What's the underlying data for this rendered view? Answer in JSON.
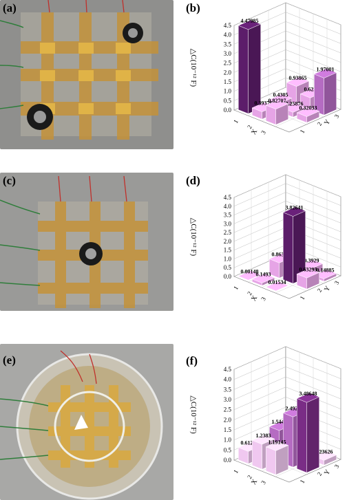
{
  "panels": [
    {
      "label": "(a)",
      "kind": "photo"
    },
    {
      "label": "(b)",
      "kind": "chart"
    },
    {
      "label": "(c)",
      "kind": "photo"
    },
    {
      "label": "(d)",
      "kind": "chart"
    },
    {
      "label": "(e)",
      "kind": "photo"
    },
    {
      "label": "(f)",
      "kind": "chart"
    }
  ],
  "colors": {
    "tall": "#5c1d6a",
    "light": "#e6a4e6",
    "mid": "#b56cc2",
    "dark_f": "#7a2d86",
    "lightest": "#f0c8f0"
  },
  "chart_data": [
    {
      "type": "bar3d",
      "ylabel": "△C(10⁻¹² F)",
      "xlabel": "X",
      "zlabel": "Y",
      "zticks": [
        "0.0",
        "0.5",
        "1.0",
        "1.5",
        "2.0",
        "2.5",
        "3.0",
        "3.5",
        "4.0",
        "4.5"
      ],
      "xticks": [
        "1",
        "2",
        "3"
      ],
      "yticks": [
        "1",
        "2",
        "3"
      ],
      "ylim": [
        0,
        4.5
      ],
      "bars": [
        {
          "x": 1,
          "y": 1,
          "value": 4.47985,
          "label": "4.47985",
          "color": "tall"
        },
        {
          "x": 2,
          "y": 1,
          "value": 0.39376,
          "label": "0.39376",
          "color": "light"
        },
        {
          "x": 2,
          "y": 2,
          "value": 0.4305,
          "label": "0.4305",
          "color": "light"
        },
        {
          "x": 2,
          "y": 3,
          "value": 0.93865,
          "label": "0.93865",
          "color": "light"
        },
        {
          "x": 3,
          "y": 1,
          "value": 0.82707,
          "label": "0.82707",
          "color": "light"
        },
        {
          "x": 3,
          "y": 2,
          "value": 0.25876,
          "label": "0.25876",
          "color": "light"
        },
        {
          "x": 3,
          "y": 3,
          "value": 0.6239,
          "label": "0.6239",
          "color": "light"
        },
        {
          "x": 4,
          "y": 2,
          "value": 0.32033,
          "label": "0.32033",
          "color": "light"
        },
        {
          "x": 4,
          "y": 3,
          "value": 1.97001,
          "label": "1.97001",
          "color": "mid"
        }
      ]
    },
    {
      "type": "bar3d",
      "ylabel": "△C(10⁻¹² F)",
      "xlabel": "X",
      "zlabel": "Y",
      "zticks": [
        "0.0",
        "0.5",
        "1.0",
        "1.5",
        "2.0",
        "2.5",
        "3.0",
        "3.5",
        "4.0",
        "4.5"
      ],
      "xticks": [
        "1",
        "2",
        "3"
      ],
      "yticks": [
        "1",
        "2",
        "3"
      ],
      "ylim": [
        0,
        4.5
      ],
      "bars": [
        {
          "x": 1,
          "y": 1,
          "value": 0.00148,
          "label": "0.00148",
          "color": "light"
        },
        {
          "x": 2,
          "y": 1,
          "value": 0.1493,
          "label": "0.1493",
          "color": "light"
        },
        {
          "x": 2,
          "y": 2,
          "value": 0.86373,
          "label": "0.86373",
          "color": "light"
        },
        {
          "x": 3,
          "y": 1,
          "value": 0.01534,
          "label": "0.01534",
          "color": "light"
        },
        {
          "x": 3,
          "y": 2,
          "value": 3.82641,
          "label": "3.82641",
          "color": "tall"
        },
        {
          "x": 3,
          "y": 3,
          "value": 0.3929,
          "label": "0.3929",
          "color": "light"
        },
        {
          "x": 4,
          "y": 2,
          "value": 0.63293,
          "label": "0.63293",
          "color": "light"
        },
        {
          "x": 4,
          "y": 3,
          "value": 0.14885,
          "label": "0.14885",
          "color": "light"
        }
      ]
    },
    {
      "type": "bar3d",
      "ylabel": "△C(10⁻¹² F)",
      "xlabel": "X",
      "zlabel": "Y",
      "zticks": [
        "0.0",
        "0.5",
        "1.0",
        "1.5",
        "2.0",
        "2.5",
        "3.0",
        "3.5",
        "4.0",
        "4.5"
      ],
      "xticks": [
        "1",
        "2",
        "3"
      ],
      "yticks": [
        "1",
        "2",
        "3"
      ],
      "ylim": [
        0,
        4.5
      ],
      "bars": [
        {
          "x": 1,
          "y": 1,
          "value": 0.61271,
          "label": "0.61271",
          "color": "lightest"
        },
        {
          "x": 2,
          "y": 1,
          "value": 1.2383,
          "label": "1.2383",
          "color": "lightest"
        },
        {
          "x": 2,
          "y": 2,
          "value": 1.54402,
          "label": "1.54402",
          "color": "mid"
        },
        {
          "x": 3,
          "y": 1,
          "value": 1.19145,
          "label": "1.19145",
          "color": "lightest"
        },
        {
          "x": 3,
          "y": 2,
          "value": 2.49274,
          "label": "2.49274",
          "color": "mid"
        },
        {
          "x": 4,
          "y": 2,
          "value": 3.48648,
          "label": "3.48648",
          "color": "dark_f"
        },
        {
          "x": 4,
          "y": 3,
          "value": 0.23626,
          "label": ".23626",
          "color": "lightest"
        }
      ]
    }
  ]
}
